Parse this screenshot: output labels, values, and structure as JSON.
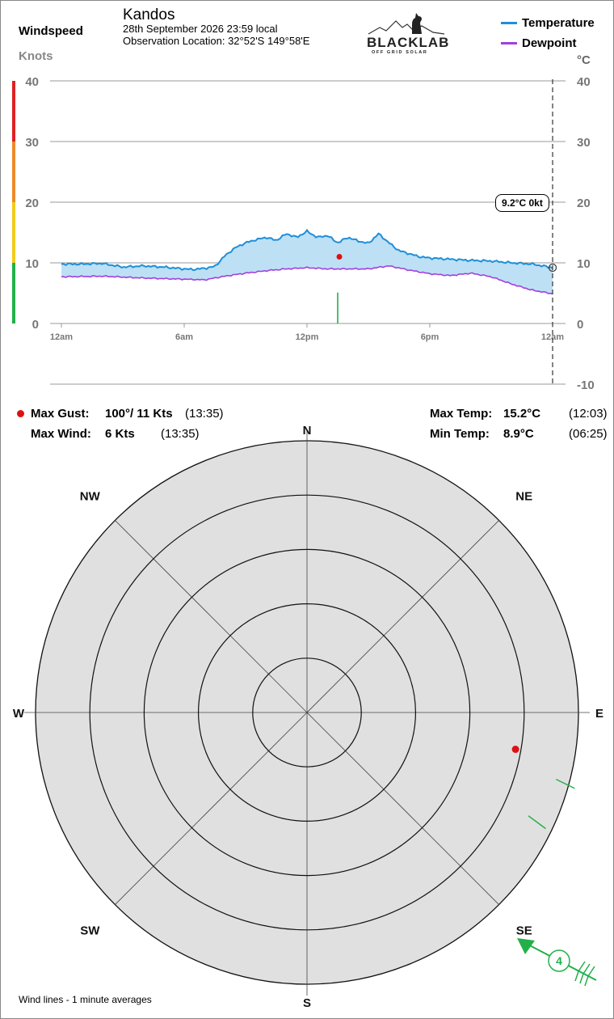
{
  "header": {
    "chart_title": "Windspeed",
    "station": "Kandos",
    "datetime": "28th September 2026  23:59 local",
    "location": "Observation Location:  32°52'S 149°58'E",
    "left_unit": "Knots",
    "right_unit": "°C"
  },
  "logo": {
    "main": "BLACKLAB",
    "sub": "OFF GRID SOLAR"
  },
  "legend": [
    {
      "label": "Temperature",
      "color": "#1f8fd8"
    },
    {
      "label": "Dewpoint",
      "color": "#a23fdc"
    }
  ],
  "current": {
    "label": "9.2°C  0kt"
  },
  "stats": {
    "max_gust_label": "Max Gust:",
    "max_gust_value": "100°/  11 Kts",
    "max_gust_time": "(13:35)",
    "max_wind_label": "Max Wind:",
    "max_wind_value": "6 Kts",
    "max_wind_time": "(13:35)",
    "max_temp_label": "Max Temp:",
    "max_temp_value": "15.2°C",
    "max_temp_time": "(12:03)",
    "min_temp_label": "Min Temp:",
    "min_temp_value": "8.9°C",
    "min_temp_time": "(06:25)"
  },
  "compass": {
    "labels": [
      "N",
      "NE",
      "E",
      "SE",
      "S",
      "SW",
      "W",
      "NW"
    ],
    "wind_count": "4"
  },
  "footnote": "Wind lines - 1 minute averages",
  "colors": {
    "temperature": "#1f8fd8",
    "dewpoint": "#a23fdc",
    "fill": "#bde0f5",
    "wind": "#22b04a",
    "gust": "#dd1111",
    "grid": "#999999",
    "dial": "#e0e0e0"
  },
  "chart_data": [
    {
      "type": "line",
      "x_ticks": [
        "12am",
        "6am",
        "12pm",
        "6pm",
        "12am"
      ],
      "left_axis": {
        "ylabel": "Knots",
        "ticks": [
          0,
          10,
          20,
          30,
          40
        ],
        "ylim": [
          0,
          40
        ]
      },
      "right_axis": {
        "ylabel": "°C",
        "ticks": [
          -10,
          0,
          10,
          20,
          30,
          40
        ],
        "ylim": [
          -10,
          40
        ]
      },
      "wind_scale_bands": [
        {
          "from": 0,
          "to": 10,
          "color": "#22b04a"
        },
        {
          "from": 10,
          "to": 20,
          "color": "#f0cc1c"
        },
        {
          "from": 20,
          "to": 30,
          "color": "#ee8a2a"
        },
        {
          "from": 30,
          "to": 40,
          "color": "#dd2222"
        }
      ],
      "series": [
        {
          "name": "Temperature",
          "hours": [
            0,
            1,
            2,
            3,
            4,
            5,
            6,
            6.4,
            7,
            7.5,
            8,
            8.5,
            9,
            9.5,
            10,
            10.5,
            11,
            11.5,
            12,
            12.5,
            13,
            13.5,
            14,
            14.5,
            15,
            15.5,
            16,
            16.5,
            17,
            17.5,
            18,
            19,
            20,
            21,
            22,
            23,
            24
          ],
          "values": [
            9.8,
            9.8,
            9.9,
            9.3,
            9.5,
            9.3,
            9.0,
            8.9,
            9.1,
            9.4,
            11.2,
            12.5,
            13.3,
            13.8,
            14.2,
            13.7,
            14.8,
            14.2,
            15.2,
            14.2,
            14.5,
            13.3,
            14.2,
            13.6,
            13.2,
            14.8,
            13.3,
            12.0,
            11.5,
            11.0,
            10.8,
            10.6,
            10.4,
            10.3,
            10.0,
            9.8,
            9.2
          ]
        },
        {
          "name": "Dewpoint",
          "hours": [
            0,
            2,
            4,
            6,
            7,
            8,
            9,
            10,
            11,
            12,
            13,
            14,
            15,
            16,
            17,
            18,
            19,
            20,
            21,
            22,
            23,
            24
          ],
          "values": [
            7.7,
            7.8,
            7.5,
            7.3,
            7.2,
            7.8,
            8.3,
            8.7,
            9.0,
            9.2,
            9.0,
            9.0,
            9.0,
            9.5,
            8.8,
            8.2,
            7.9,
            8.3,
            7.7,
            6.5,
            5.5,
            4.9
          ]
        },
        {
          "name": "Wind",
          "hours": [
            13.5,
            13.55
          ],
          "values": [
            5.5,
            0
          ]
        }
      ],
      "gust_marker": {
        "hour": 13.58,
        "knots": 11
      },
      "current_marker": {
        "hour": 24,
        "temp": 9.2,
        "knots": 0
      }
    },
    {
      "type": "polar",
      "rings_knots": [
        2,
        4,
        6,
        8,
        10
      ],
      "max_knots": 10,
      "gust": {
        "direction_deg": 100,
        "speed_kts": 11
      },
      "wind_lines": [
        {
          "direction_deg": 105,
          "speed_kts": 9.5
        },
        {
          "direction_deg": 115,
          "speed_kts": 9.0
        }
      ],
      "current_wind_arrow": {
        "direction_deg": 125,
        "count": 4
      }
    }
  ]
}
